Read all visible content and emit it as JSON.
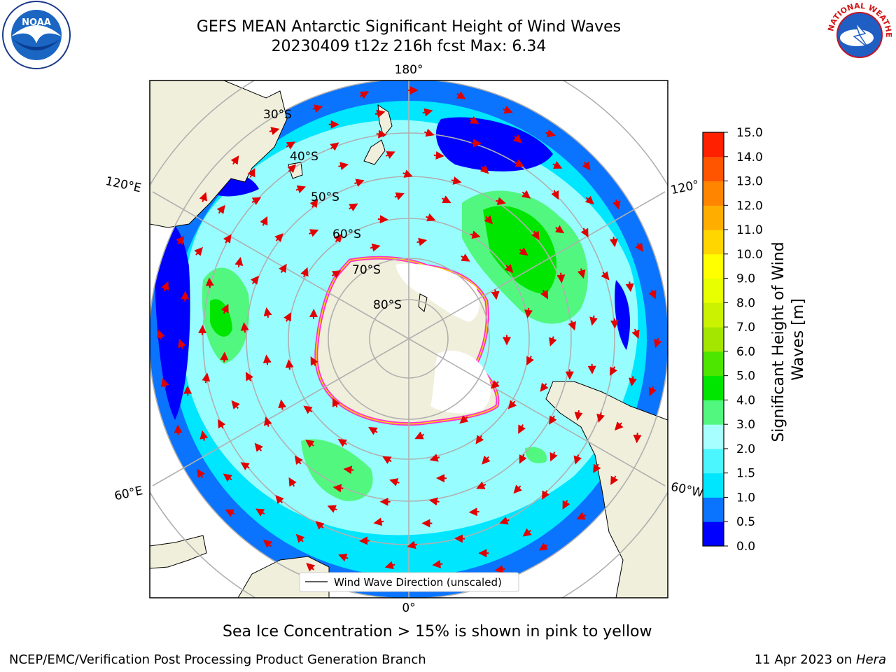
{
  "header": {
    "title_line1": "GEFS MEAN Antarctic Significant Height of Wind Waves",
    "title_line2": "20230409 t12z 216h fcst   Max: 6.34"
  },
  "logos": {
    "noara_text": "NOAA",
    "nws_text": "NATIONAL WEATHER SERVICE"
  },
  "map": {
    "lon_labels": {
      "top": "180°",
      "bottom": "0°",
      "left_upper": "120°E",
      "right_upper": "120°",
      "left_lower": "60°E",
      "right_lower": "60°W"
    },
    "lat_labels": [
      "30°S",
      "40°S",
      "50°S",
      "60°S",
      "70°S",
      "80°S"
    ],
    "legend_label": "Wind Wave Direction (unscaled)"
  },
  "colorbar": {
    "label": "Significant Height of Wind Waves [m]",
    "ticks": [
      "0.0",
      "0.5",
      "1.0",
      "1.5",
      "2.0",
      "3.0",
      "4.0",
      "5.0",
      "6.0",
      "7.0",
      "8.0",
      "9.0",
      "10.0",
      "11.0",
      "12.0",
      "13.0",
      "14.0",
      "15.0"
    ],
    "colors": [
      "#0000ff",
      "#0b74ff",
      "#00e6ff",
      "#4cf6ff",
      "#a8ffff",
      "#52f77f",
      "#00e600",
      "#4de600",
      "#a4e600",
      "#cbf200",
      "#e8ff00",
      "#ffff00",
      "#ffd600",
      "#ffae00",
      "#ff8500",
      "#ff5400",
      "#ff2000"
    ]
  },
  "caption": "Sea Ice Concentration > 15% is shown in pink to yellow",
  "footer": {
    "left": "NCEP/EMC/Verification Post Processing Product Generation Branch",
    "right_prefix": "11 Apr 2023 on ",
    "right_host": "Hera"
  }
}
